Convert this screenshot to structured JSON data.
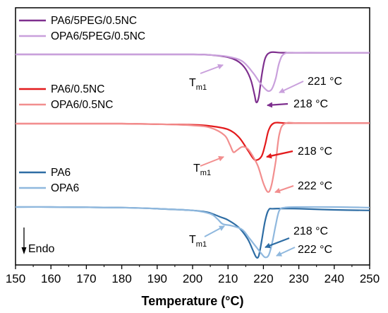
{
  "chart_data": {
    "type": "line",
    "title": "",
    "xlabel": "Temperature (°C)",
    "ylabel": "",
    "xlim": [
      150,
      250
    ],
    "x_ticks": [
      "150",
      "160",
      "170",
      "180",
      "190",
      "200",
      "210",
      "220",
      "230",
      "240",
      "250"
    ],
    "y_ticks_shown": false,
    "grid": false,
    "endo_label": "Endo",
    "groups": [
      {
        "legend": [
          {
            "name": "PA6/5PEG/0.5NC",
            "color": "#7E2F8E"
          },
          {
            "name": "OPA6/5PEG/0.5NC",
            "color": "#C9A0DC"
          }
        ],
        "series": [
          {
            "name": "PA6/5PEG/0.5NC",
            "color": "#7E2F8E",
            "points": [
              [
                150,
                0
              ],
              [
                160,
                0
              ],
              [
                170,
                0
              ],
              [
                180,
                0
              ],
              [
                190,
                0
              ],
              [
                200,
                0
              ],
              [
                205,
                -0.1
              ],
              [
                210,
                -0.5
              ],
              [
                213,
                -1.3
              ],
              [
                215,
                -2.6
              ],
              [
                216.5,
                -4.6
              ],
              [
                217.5,
                -7.2
              ],
              [
                218,
                -8.5
              ],
              [
                218.7,
                -7.5
              ],
              [
                219.5,
                -3.8
              ],
              [
                220.5,
                -0.7
              ],
              [
                222,
                0.35
              ],
              [
                225,
                0.3
              ],
              [
                230,
                0.3
              ],
              [
                240,
                0.3
              ],
              [
                250,
                0.3
              ]
            ]
          },
          {
            "name": "OPA6/5PEG/0.5NC",
            "color": "#C9A0DC",
            "points": [
              [
                150,
                0
              ],
              [
                160,
                0
              ],
              [
                170,
                0
              ],
              [
                180,
                0
              ],
              [
                190,
                0
              ],
              [
                200,
                0
              ],
              [
                205,
                -0.1
              ],
              [
                210,
                -0.4
              ],
              [
                214,
                -1.2
              ],
              [
                217,
                -3.2
              ],
              [
                219,
                -5.0
              ],
              [
                220.5,
                -6.1
              ],
              [
                221.5,
                -6.5
              ],
              [
                222.5,
                -6.0
              ],
              [
                223.5,
                -4.2
              ],
              [
                224.5,
                -1.4
              ],
              [
                226,
                0.15
              ],
              [
                230,
                0.3
              ],
              [
                240,
                0.3
              ],
              [
                250,
                0.3
              ]
            ]
          }
        ],
        "annotations": [
          {
            "text": "221 °C"
          },
          {
            "text": "218 °C"
          },
          {
            "text": "Tm1",
            "base": "T",
            "sub": "m1"
          }
        ]
      },
      {
        "legend": [
          {
            "name": "PA6/0.5NC",
            "color": "#E31A1C"
          },
          {
            "name": "OPA6/0.5NC",
            "color": "#F28E8E"
          }
        ],
        "series": [
          {
            "name": "PA6/0.5NC",
            "color": "#E31A1C",
            "points": [
              [
                150,
                0
              ],
              [
                160,
                0
              ],
              [
                170,
                0
              ],
              [
                180,
                0
              ],
              [
                190,
                -0.1
              ],
              [
                200,
                -0.2
              ],
              [
                205,
                -0.4
              ],
              [
                210,
                -1.0
              ],
              [
                213,
                -2.3
              ],
              [
                215.5,
                -4.5
              ],
              [
                217,
                -5.9
              ],
              [
                218,
                -6.3
              ],
              [
                219.5,
                -5.6
              ],
              [
                220.5,
                -3.6
              ],
              [
                221.5,
                -1.1
              ],
              [
                223,
                0.1
              ],
              [
                226,
                0.1
              ],
              [
                230,
                0.1
              ],
              [
                240,
                0.1
              ],
              [
                250,
                0.1
              ]
            ]
          },
          {
            "name": "OPA6/0.5NC",
            "color": "#F28E8E",
            "points": [
              [
                150,
                0
              ],
              [
                160,
                0
              ],
              [
                170,
                0
              ],
              [
                180,
                0
              ],
              [
                190,
                -0.1
              ],
              [
                200,
                -0.3
              ],
              [
                205,
                -0.7
              ],
              [
                209,
                -2.0
              ],
              [
                210.5,
                -3.6
              ],
              [
                211.5,
                -4.9
              ],
              [
                212.5,
                -4.6
              ],
              [
                214,
                -4.0
              ],
              [
                215.5,
                -4.3
              ],
              [
                217,
                -5.6
              ],
              [
                218.5,
                -7.4
              ],
              [
                220,
                -10.3
              ],
              [
                221.3,
                -11.8
              ],
              [
                222.3,
                -10.6
              ],
              [
                223.5,
                -6.4
              ],
              [
                224.5,
                -1.8
              ],
              [
                226,
                0
              ],
              [
                230,
                0.1
              ],
              [
                240,
                0.1
              ],
              [
                250,
                0.1
              ]
            ]
          }
        ],
        "annotations": [
          {
            "text": "218 °C"
          },
          {
            "text": "222 °C"
          },
          {
            "text": "Tm1",
            "base": "T",
            "sub": "m1"
          }
        ]
      },
      {
        "legend": [
          {
            "name": "PA6",
            "color": "#2E6DA4"
          },
          {
            "name": "OPA6",
            "color": "#8FB8DE"
          }
        ],
        "series": [
          {
            "name": "PA6",
            "color": "#2E6DA4",
            "points": [
              [
                150,
                0
              ],
              [
                160,
                0
              ],
              [
                170,
                -0.05
              ],
              [
                180,
                -0.1
              ],
              [
                190,
                -0.3
              ],
              [
                200,
                -0.6
              ],
              [
                204,
                -0.9
              ],
              [
                206,
                -1.3
              ],
              [
                208,
                -1.8
              ],
              [
                210,
                -2.3
              ],
              [
                213,
                -3.6
              ],
              [
                215.5,
                -5.6
              ],
              [
                217,
                -7.6
              ],
              [
                218,
                -8.9
              ],
              [
                218.7,
                -8.6
              ],
              [
                219.5,
                -6.0
              ],
              [
                220.5,
                -2.4
              ],
              [
                221.5,
                -0.5
              ],
              [
                223,
                -0.3
              ],
              [
                230,
                -0.3
              ],
              [
                240,
                -0.5
              ],
              [
                250,
                -0.6
              ]
            ]
          },
          {
            "name": "OPA6",
            "color": "#8FB8DE",
            "points": [
              [
                150,
                0
              ],
              [
                160,
                0
              ],
              [
                170,
                -0.05
              ],
              [
                180,
                -0.1
              ],
              [
                190,
                -0.3
              ],
              [
                200,
                -0.6
              ],
              [
                205,
                -1.2
              ],
              [
                207,
                -2.1
              ],
              [
                208.5,
                -3.0
              ],
              [
                211,
                -3.3
              ],
              [
                214,
                -4.0
              ],
              [
                216,
                -5.5
              ],
              [
                218,
                -7.1
              ],
              [
                219.5,
                -8.3
              ],
              [
                220.5,
                -8.9
              ],
              [
                221.5,
                -8.5
              ],
              [
                222.5,
                -6.3
              ],
              [
                223.5,
                -3.1
              ],
              [
                224.5,
                -0.6
              ],
              [
                226,
                -0.1
              ],
              [
                230,
                0
              ],
              [
                240,
                0
              ],
              [
                250,
                -0.1
              ]
            ]
          }
        ],
        "annotations": [
          {
            "text": "218 °C"
          },
          {
            "text": "222 °C"
          },
          {
            "text": "Tm1",
            "base": "T",
            "sub": "m1"
          }
        ]
      }
    ]
  }
}
